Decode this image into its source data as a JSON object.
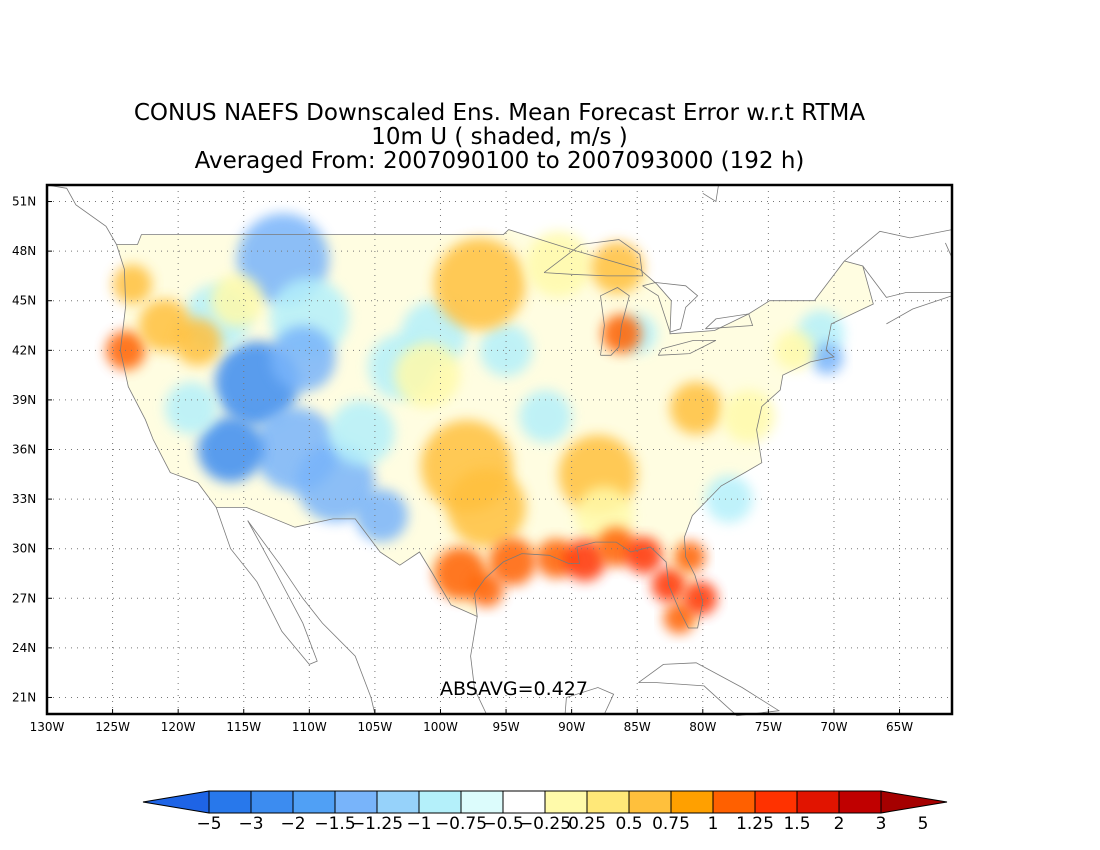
{
  "title": {
    "line1": "CONUS NAEFS Downscaled Ens. Mean Forecast Error w.r.t RTMA",
    "line2": "10m U ( shaded, m/s )",
    "line3": "Averaged From: 2007090100 to 2007093000 (192 h)"
  },
  "map": {
    "lon_ticks": [
      "130W",
      "125W",
      "120W",
      "115W",
      "110W",
      "105W",
      "100W",
      "95W",
      "90W",
      "85W",
      "80W",
      "75W",
      "70W",
      "65W"
    ],
    "lat_ticks": [
      "51N",
      "48N",
      "45N",
      "42N",
      "39N",
      "36N",
      "33N",
      "30N",
      "27N",
      "24N",
      "21N"
    ],
    "lon_values": [
      -130,
      -125,
      -120,
      -115,
      -110,
      -105,
      -100,
      -95,
      -90,
      -85,
      -80,
      -75,
      -70,
      -65
    ],
    "lat_values": [
      51,
      48,
      45,
      42,
      39,
      36,
      33,
      30,
      27,
      24,
      21
    ],
    "lon_range": [
      -130,
      -61
    ],
    "lat_range": [
      20,
      52
    ],
    "grid": "dotted",
    "annotation": "ABSAVG=0.427"
  },
  "colorbar": {
    "labels": [
      "−5",
      "−3",
      "−2",
      "−1.5",
      "−1.25",
      "−1",
      "−0.75",
      "−0.5",
      "−0.25",
      "0.25",
      "0.5",
      "0.75",
      "1",
      "1.25",
      "1.5",
      "2",
      "3",
      "5"
    ],
    "colors": [
      "#1e64e6",
      "#2878eb",
      "#3c8cf0",
      "#50a0f5",
      "#78b4fa",
      "#96d2fa",
      "#b4f0fa",
      "#dcfcfc",
      "#ffffff",
      "#fffaaa",
      "#ffe878",
      "#ffc03c",
      "#ffa000",
      "#ff6000",
      "#ff3200",
      "#e11400",
      "#c00000",
      "#a50000"
    ]
  },
  "field_colors": {
    "neg_strong": "#3c8cf0",
    "neg_mid": "#78b4fa",
    "neg_weak": "#b4f0fa",
    "pos_weak": "#fffaaa",
    "pos_mid": "#ffc03c",
    "pos_strong": "#ff6000",
    "pos_extreme": "#ff3200"
  }
}
